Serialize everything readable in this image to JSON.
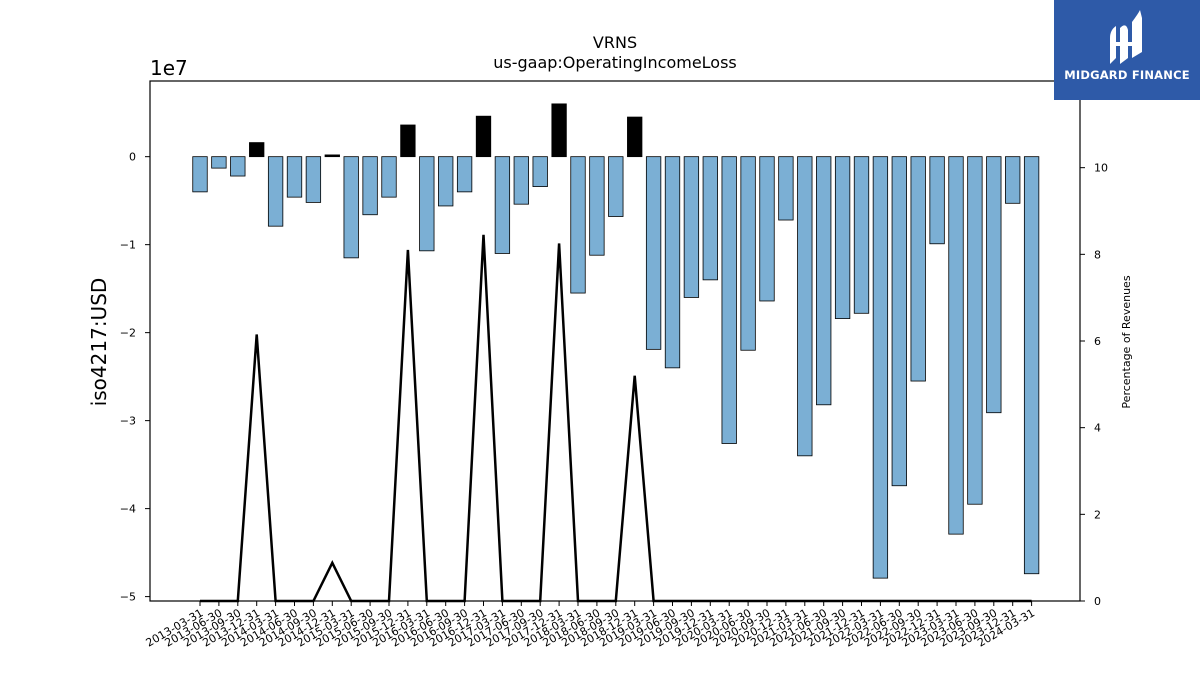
{
  "logo": {
    "name": "MIDGARD FINANCE",
    "bg_color": "#2e5aa8",
    "icon": "midgard-logo-icon"
  },
  "chart_data": {
    "type": "bar",
    "title": "VRNS",
    "subtitle": "us-gaap:OperatingIncomeLoss",
    "ylabel": "iso4217:USD",
    "y2label": "Percentage of Revenues",
    "y_offset_label": "1e7",
    "ylim": [
      -50500000,
      8600000
    ],
    "y2lim": [
      0,
      12
    ],
    "yticks": [
      0,
      -10000000,
      -20000000,
      -30000000,
      -40000000,
      -50000000
    ],
    "ytick_labels": [
      "0",
      "−1",
      "−2",
      "−3",
      "−4",
      "−5"
    ],
    "y2ticks": [
      0,
      2,
      4,
      6,
      8,
      10
    ],
    "y2tick_labels": [
      "0",
      "2",
      "4",
      "6",
      "8",
      "10"
    ],
    "grid": false,
    "colors": {
      "negative": "#7bafd4",
      "positive": "#000000",
      "edge": "#000000",
      "line": "#000000"
    },
    "categories": [
      "2013-03-31",
      "2013-06-30",
      "2013-09-30",
      "2013-12-31",
      "2014-03-31",
      "2014-06-30",
      "2014-09-30",
      "2014-12-31",
      "2015-03-31",
      "2015-06-30",
      "2015-09-30",
      "2015-12-31",
      "2016-03-31",
      "2016-06-30",
      "2016-09-30",
      "2016-12-31",
      "2017-03-31",
      "2017-06-30",
      "2017-09-30",
      "2017-12-31",
      "2018-03-31",
      "2018-06-30",
      "2018-09-30",
      "2018-12-31",
      "2019-03-31",
      "2019-06-30",
      "2019-09-30",
      "2019-12-31",
      "2020-03-31",
      "2020-06-30",
      "2020-09-30",
      "2020-12-31",
      "2021-03-31",
      "2021-06-30",
      "2021-09-30",
      "2021-12-31",
      "2022-03-31",
      "2022-06-30",
      "2022-09-30",
      "2022-12-31",
      "2023-03-31",
      "2023-06-30",
      "2023-09-30",
      "2023-12-31",
      "2024-03-31"
    ],
    "series": [
      {
        "type": "bar",
        "values": [
          -4000000,
          -1300000,
          -2200000,
          1600000,
          -7900000,
          -4600000,
          -5200000,
          200000,
          -11500000,
          -6600000,
          -4600000,
          3600000,
          -10700000,
          -5600000,
          -4000000,
          4600000,
          -11000000,
          -5400000,
          -3400000,
          6000000,
          -15500000,
          -11200000,
          -6800000,
          4500000,
          -21900000,
          -24000000,
          -16000000,
          -14000000,
          -32600000,
          -22000000,
          -16400000,
          -7200000,
          -34000000,
          -28200000,
          -18400000,
          -17800000,
          -47900000,
          -37400000,
          -25500000,
          -9900000,
          -42900000,
          -39500000,
          -29100000,
          -5300000,
          -47400000
        ]
      },
      {
        "type": "line",
        "axis": "right",
        "values": [
          0,
          0,
          0,
          6.15,
          0,
          0,
          0,
          0.88,
          0,
          0,
          0,
          8.1,
          0,
          0,
          0,
          8.45,
          0,
          0,
          0,
          8.25,
          0,
          0,
          0,
          5.2,
          0,
          0,
          0,
          0,
          0,
          0,
          0,
          0,
          0,
          0,
          0,
          0,
          0,
          0,
          0,
          0,
          0,
          0,
          0,
          0,
          0
        ]
      }
    ]
  }
}
